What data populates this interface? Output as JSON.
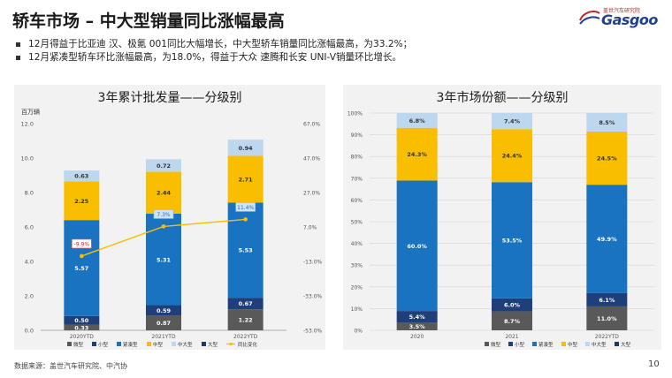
{
  "page": {
    "title": "轿车市场 – 中大型销量同比涨幅最高",
    "logo_top": "盖世汽车研究院",
    "logo_main": "Gasgoo",
    "bullets": [
      "12月得益于比亚迪 汉、极氪 001同比大幅增长，中大型轿车销量同比涨幅最高，为33.2%；",
      "12月紧凑型轿车环比涨幅最高，为18.0%，得益于大众 速腾和长安 UNI-V销量环比增长。"
    ],
    "source": "数据来源：盖世汽车研究院、中汽协",
    "page_number": "10"
  },
  "chart_data": [
    {
      "type": "bar",
      "stacked": true,
      "title": "3年累计批发量——分级别",
      "ylabel": "百万辆",
      "ylim": [
        0,
        12
      ],
      "yticks": [
        "0.0",
        "2.0",
        "4.0",
        "6.0",
        "8.0",
        "10.0",
        "12.0"
      ],
      "y2ticks": [
        "-53.0%",
        "-33.0%",
        "-13.0%",
        "7.0%",
        "27.0%",
        "47.0%",
        "67.0%"
      ],
      "y2lim": [
        -53,
        67
      ],
      "categories": [
        "2020YTD",
        "2021YTD",
        "2022YTD"
      ],
      "series": [
        {
          "name": "微型",
          "color": "#595959",
          "values": [
            0.33,
            0.87,
            1.22
          ],
          "labels": [
            "0.33",
            "0.87",
            "1.22"
          ]
        },
        {
          "name": "小型",
          "color": "#1f3f7a",
          "values": [
            0.5,
            0.59,
            0.67
          ],
          "labels": [
            "0.50",
            "0.59",
            "0.67"
          ]
        },
        {
          "name": "紧凑型",
          "color": "#1a73c1",
          "values": [
            5.57,
            5.31,
            5.53
          ],
          "labels": [
            "5.57",
            "5.31",
            "5.53"
          ]
        },
        {
          "name": "中型",
          "color": "#f9be00",
          "values": [
            2.25,
            2.44,
            2.71
          ],
          "labels": [
            "2.25",
            "2.44",
            "2.71"
          ]
        },
        {
          "name": "中大型",
          "color": "#bdd7ee",
          "values": [
            0.63,
            0.72,
            0.94
          ],
          "labels": [
            "0.63",
            "0.72",
            "0.94"
          ]
        },
        {
          "name": "大型",
          "color": "#203864",
          "values": [
            0,
            0,
            0
          ],
          "labels": []
        }
      ],
      "line": {
        "name": "同比变化",
        "color": "#f9be00",
        "values": [
          -9.9,
          7.3,
          11.4
        ],
        "labels": [
          "-9.9%",
          "7.3%",
          "11.4%"
        ]
      },
      "legend": [
        "微型",
        "小型",
        "紧凑型",
        "中型",
        "中大型",
        "大型",
        "同比变化"
      ],
      "legend_position": "bottom"
    },
    {
      "type": "bar",
      "stacked": true,
      "percent": true,
      "title": "3年市场份额——分级别",
      "ylim": [
        0,
        100
      ],
      "yticks": [
        "0%",
        "10%",
        "20%",
        "30%",
        "40%",
        "50%",
        "60%",
        "70%",
        "80%",
        "90%",
        "100%"
      ],
      "categories": [
        "2020",
        "2021",
        "2022YTD"
      ],
      "series": [
        {
          "name": "微型",
          "color": "#595959",
          "values": [
            3.5,
            8.7,
            11.0
          ],
          "labels": [
            "3.5%",
            "8.7%",
            "11.0%"
          ]
        },
        {
          "name": "小型",
          "color": "#1f3f7a",
          "values": [
            5.4,
            6.0,
            6.1
          ],
          "labels": [
            "5.4%",
            "6.0%",
            "6.1%"
          ]
        },
        {
          "name": "紧凑型",
          "color": "#1a73c1",
          "values": [
            60.0,
            53.5,
            49.9
          ],
          "labels": [
            "60.0%",
            "53.5%",
            "49.9%"
          ]
        },
        {
          "name": "中型",
          "color": "#f9be00",
          "values": [
            24.3,
            24.4,
            24.5
          ],
          "labels": [
            "24.3%",
            "24.4%",
            "24.5%"
          ]
        },
        {
          "name": "中大型",
          "color": "#bdd7ee",
          "values": [
            6.8,
            7.4,
            8.5
          ],
          "labels": [
            "6.8%",
            "7.4%",
            "8.5%"
          ]
        },
        {
          "name": "大型",
          "color": "#203864",
          "values": [
            0,
            0,
            0
          ],
          "labels": []
        }
      ],
      "legend": [
        "微型",
        "小型",
        "紧凑型",
        "中型",
        "中大型",
        "大型"
      ],
      "legend_position": "bottom"
    }
  ]
}
